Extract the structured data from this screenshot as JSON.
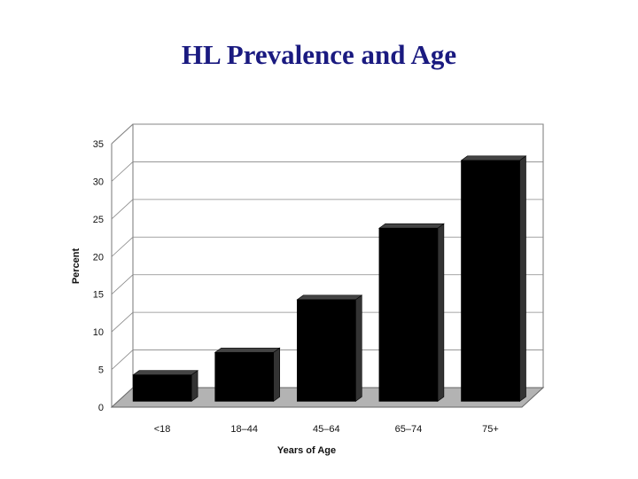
{
  "chart_data": {
    "type": "bar",
    "title": "HL Prevalence and Age",
    "xlabel": "Years of Age",
    "ylabel": "Percent",
    "categories": [
      "<18",
      "18–44",
      "45–64",
      "65–74",
      "75+"
    ],
    "values": [
      3.5,
      6.5,
      13.5,
      23,
      32
    ],
    "ylim": [
      0,
      35
    ],
    "yticks": [
      "0",
      "5",
      "10",
      "15",
      "20",
      "25",
      "30",
      "35"
    ],
    "grid": true,
    "legend": "none",
    "bar_color": "#000000",
    "floor_color": "#b3b3b3"
  }
}
